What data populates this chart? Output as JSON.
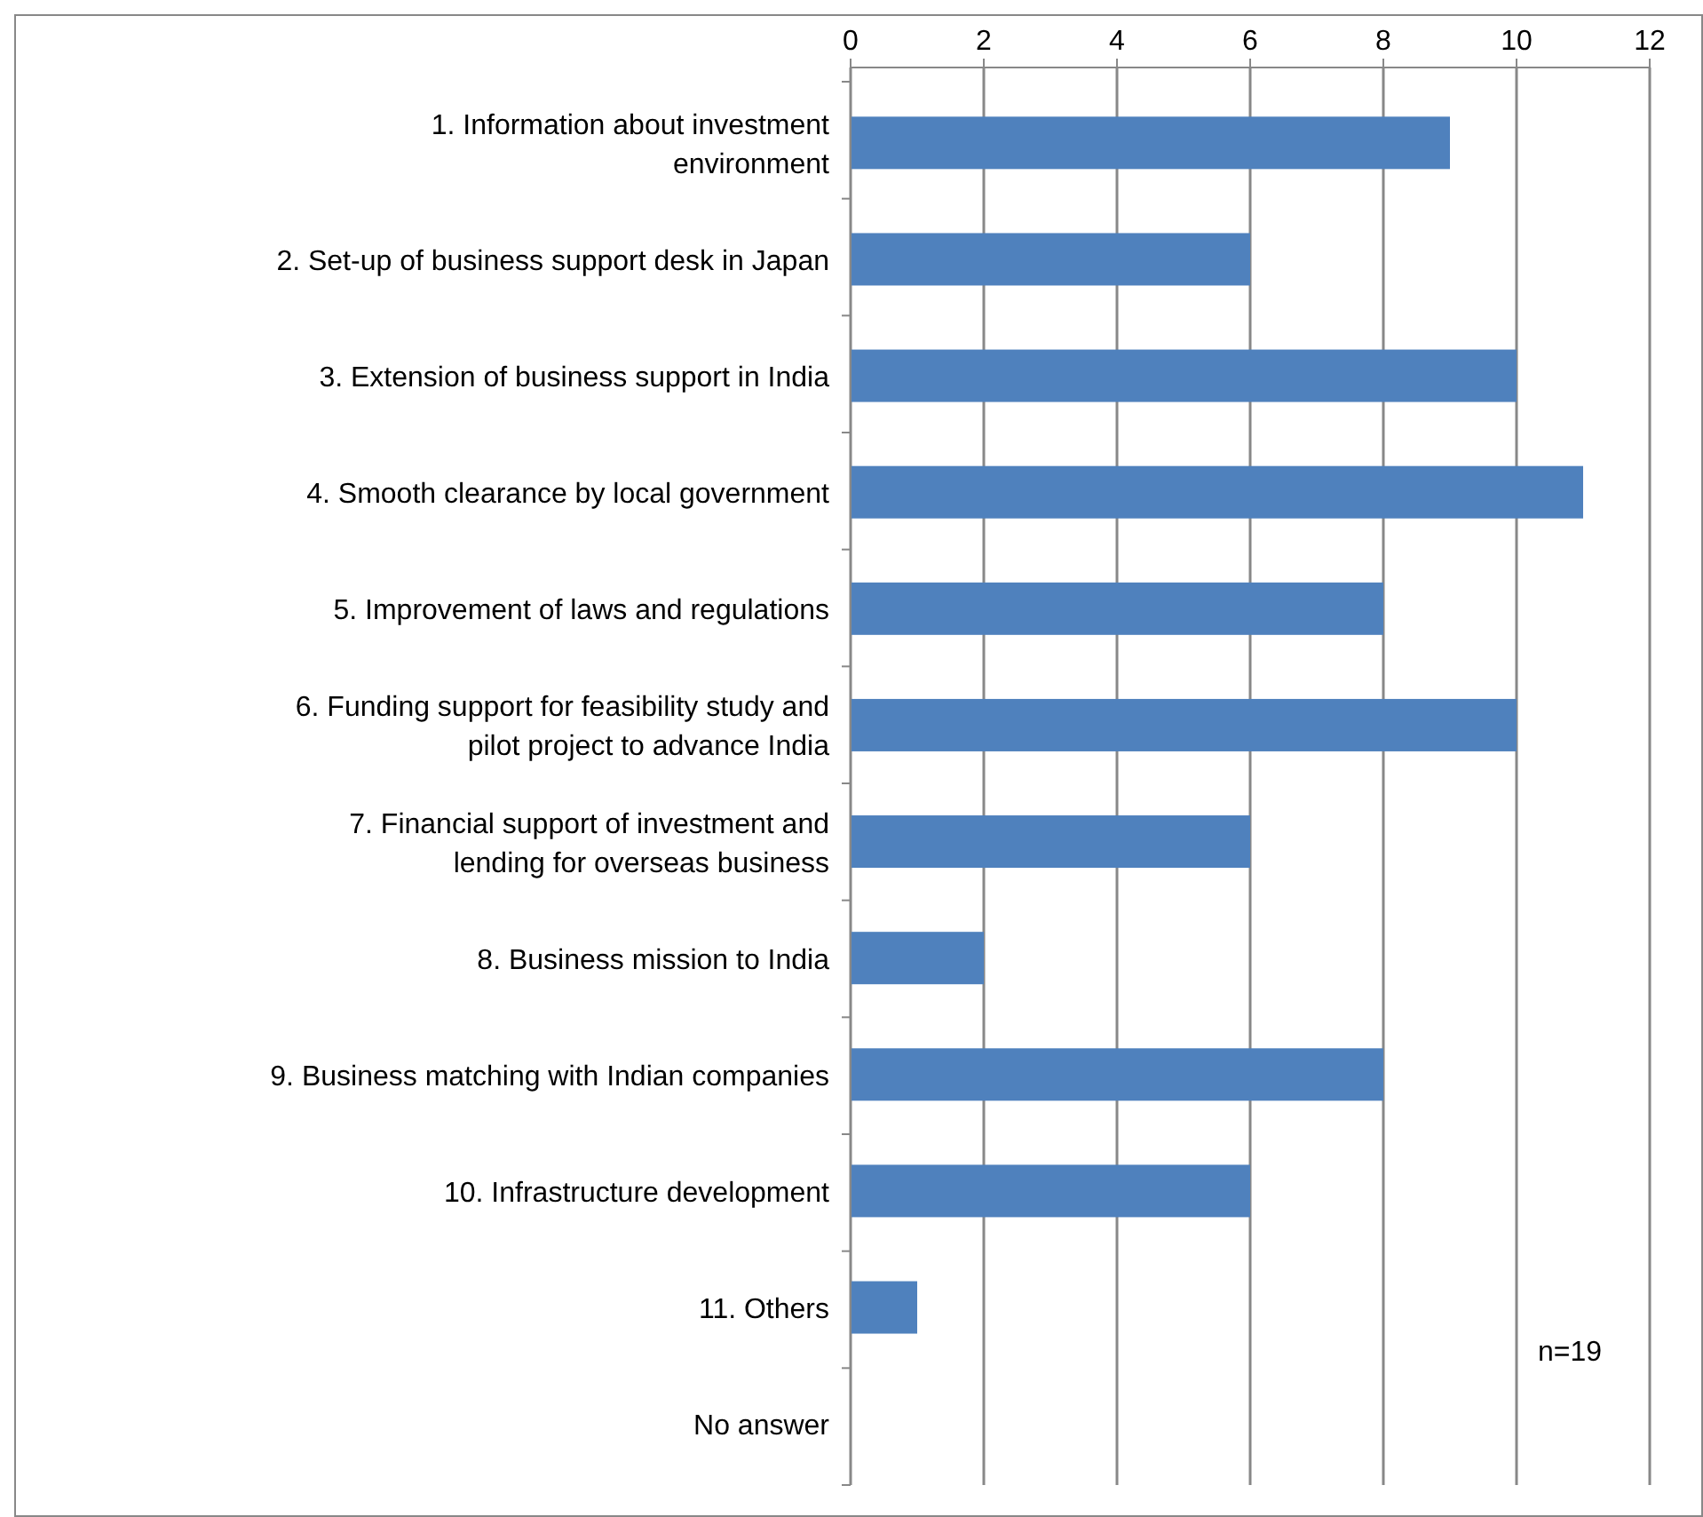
{
  "chart_data": {
    "type": "bar",
    "orientation": "horizontal",
    "categories": [
      "1. Information about investment\nenvironment",
      "2. Set-up of business support desk in Japan",
      "3. Extension of business support in India",
      "4. Smooth clearance by local government",
      "5. Improvement of laws and regulations",
      "6. Funding support for feasibility study and\npilot project to advance India",
      "7. Financial support of investment and\nlending for overseas business",
      "8. Business mission to India",
      "9. Business matching with Indian companies",
      "10. Infrastructure development",
      "11. Others",
      "No answer"
    ],
    "values": [
      9,
      6,
      10,
      11,
      8,
      10,
      6,
      2,
      8,
      6,
      1,
      0
    ],
    "color": "#4f81bd",
    "xlim": [
      0,
      12
    ],
    "xticks": [
      0,
      2,
      4,
      6,
      8,
      10,
      12
    ],
    "grid": "x",
    "annotations": [
      "n=19"
    ]
  }
}
